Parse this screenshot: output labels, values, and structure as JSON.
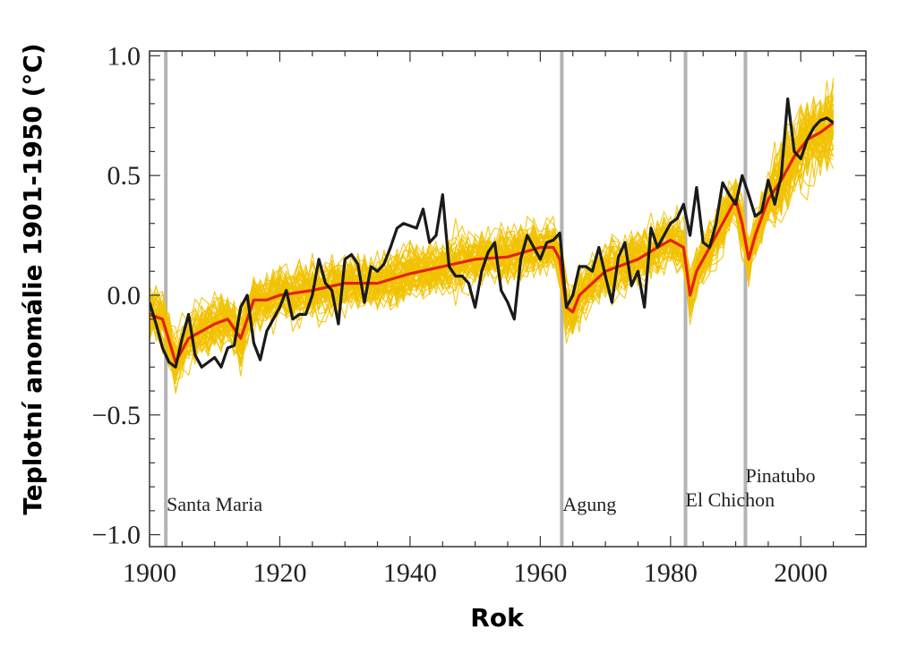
{
  "chart_data": {
    "type": "line",
    "xlabel": "Rok",
    "ylabel": "Teplotní anomálie 1901-1950 (°C)",
    "xlim": [
      1900,
      2010
    ],
    "ylim": [
      -1.05,
      1.02
    ],
    "xticks": [
      1900,
      1920,
      1940,
      1960,
      1980,
      2000
    ],
    "yticks": [
      -1.0,
      -0.5,
      0.0,
      0.5,
      1.0
    ],
    "ytick_labels": [
      "−1.0",
      "−0.5",
      "0.0",
      "0.5",
      "1.0"
    ],
    "grid": false,
    "colors": {
      "ensemble": "#f2c200",
      "ensemble_mean": "#e32214",
      "observed": "#1a1a1a",
      "volcano_line": "#b4b4b4"
    },
    "volcanoes": [
      {
        "name": "Santa Maria",
        "year": 1902.5
      },
      {
        "name": "Agung",
        "year": 1963.3
      },
      {
        "name": "El Chichon",
        "year": 1982.3
      },
      {
        "name": "Pinatubo",
        "year": 1991.5
      }
    ],
    "series": [
      {
        "key": "ensemble_mean",
        "x": [
          1900,
          1902,
          1904,
          1906,
          1908,
          1910,
          1912,
          1914,
          1916,
          1918,
          1920,
          1925,
          1930,
          1935,
          1940,
          1945,
          1950,
          1955,
          1960,
          1962,
          1963,
          1964,
          1965,
          1966,
          1968,
          1970,
          1972,
          1975,
          1978,
          1980,
          1982,
          1983,
          1984,
          1986,
          1988,
          1990,
          1991,
          1992,
          1993,
          1995,
          1997,
          1999,
          2001,
          2003,
          2005
        ],
        "values": [
          -0.08,
          -0.1,
          -0.28,
          -0.18,
          -0.15,
          -0.12,
          -0.1,
          -0.18,
          -0.02,
          -0.02,
          0.0,
          0.02,
          0.05,
          0.05,
          0.09,
          0.12,
          0.15,
          0.16,
          0.2,
          0.2,
          0.15,
          -0.05,
          -0.07,
          0.0,
          0.05,
          0.1,
          0.12,
          0.15,
          0.2,
          0.23,
          0.2,
          0.0,
          0.1,
          0.2,
          0.3,
          0.4,
          0.3,
          0.15,
          0.25,
          0.4,
          0.48,
          0.58,
          0.65,
          0.68,
          0.72
        ]
      },
      {
        "key": "observed",
        "x": [
          1900,
          1901,
          1902,
          1903,
          1904,
          1905,
          1906,
          1907,
          1908,
          1909,
          1910,
          1911,
          1912,
          1913,
          1914,
          1915,
          1916,
          1917,
          1918,
          1919,
          1920,
          1921,
          1922,
          1923,
          1924,
          1925,
          1926,
          1927,
          1928,
          1929,
          1930,
          1931,
          1932,
          1933,
          1934,
          1935,
          1936,
          1937,
          1938,
          1939,
          1940,
          1941,
          1942,
          1943,
          1944,
          1945,
          1946,
          1947,
          1948,
          1949,
          1950,
          1951,
          1952,
          1953,
          1954,
          1955,
          1956,
          1957,
          1958,
          1959,
          1960,
          1961,
          1962,
          1963,
          1964,
          1965,
          1966,
          1967,
          1968,
          1969,
          1970,
          1971,
          1972,
          1973,
          1974,
          1975,
          1976,
          1977,
          1978,
          1979,
          1980,
          1981,
          1982,
          1983,
          1984,
          1985,
          1986,
          1987,
          1988,
          1989,
          1990,
          1991,
          1992,
          1993,
          1994,
          1995,
          1996,
          1997,
          1998,
          1999,
          2000,
          2001,
          2002,
          2003,
          2004,
          2005
        ],
        "values": [
          -0.03,
          -0.12,
          -0.22,
          -0.28,
          -0.3,
          -0.18,
          -0.08,
          -0.25,
          -0.3,
          -0.28,
          -0.26,
          -0.3,
          -0.22,
          -0.21,
          -0.05,
          0.0,
          -0.2,
          -0.27,
          -0.15,
          -0.1,
          -0.05,
          0.02,
          -0.1,
          -0.08,
          -0.08,
          0.0,
          0.15,
          0.05,
          0.02,
          -0.12,
          0.15,
          0.17,
          0.13,
          -0.03,
          0.12,
          0.1,
          0.13,
          0.2,
          0.28,
          0.3,
          0.29,
          0.28,
          0.36,
          0.22,
          0.25,
          0.42,
          0.12,
          0.08,
          0.08,
          0.05,
          -0.05,
          0.1,
          0.18,
          0.22,
          0.02,
          -0.03,
          -0.1,
          0.15,
          0.25,
          0.2,
          0.15,
          0.22,
          0.23,
          0.26,
          -0.05,
          0.0,
          0.12,
          0.12,
          0.1,
          0.2,
          0.08,
          -0.03,
          0.16,
          0.22,
          0.04,
          0.1,
          -0.05,
          0.28,
          0.2,
          0.25,
          0.3,
          0.32,
          0.38,
          0.25,
          0.45,
          0.22,
          0.2,
          0.3,
          0.47,
          0.42,
          0.38,
          0.5,
          0.42,
          0.33,
          0.35,
          0.48,
          0.38,
          0.5,
          0.82,
          0.6,
          0.57,
          0.65,
          0.7,
          0.73,
          0.74,
          0.72
        ]
      }
    ]
  }
}
